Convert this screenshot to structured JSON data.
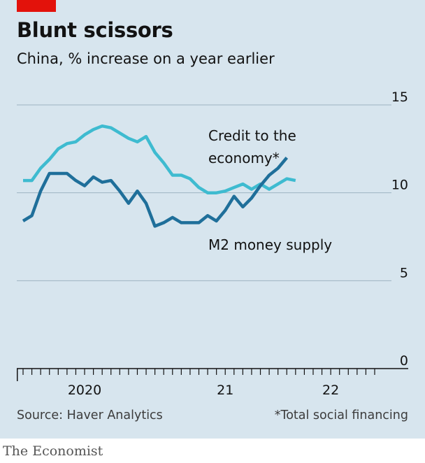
{
  "title": "Blunt scissors",
  "subtitle": "China, % increase on a year earlier",
  "source": "Source: Haver Analytics",
  "footnote": "*Total social financing",
  "brand": "The Economist",
  "colors": {
    "background": "#d7e5ee",
    "accent": "#e3120b",
    "credit": "#3ebbd0",
    "m2": "#1f6f9a",
    "grid": "#9db3c2",
    "axis": "#121212"
  },
  "chart_data": {
    "type": "line",
    "title": "Blunt scissors",
    "subtitle": "China, % increase on a year earlier",
    "xlabel": "",
    "ylabel": "",
    "ylim": [
      0,
      15
    ],
    "yticks": [
      0,
      5,
      10,
      15
    ],
    "ytick_labels": [
      "0",
      "5",
      "10",
      "15"
    ],
    "xlim": [
      0,
      41
    ],
    "month_ticks": 41,
    "year_ticks": [
      {
        "label": "2020",
        "index": 7
      },
      {
        "label": "21",
        "index": 23
      },
      {
        "label": "22",
        "index": 35
      }
    ],
    "x_start": "2019-08",
    "x_end": "2022-06",
    "series": [
      {
        "name": "Credit to the economy*",
        "label_lines": [
          "Credit to the",
          "economy*"
        ],
        "values": [
          10.7,
          10.7,
          11.4,
          11.9,
          12.5,
          12.8,
          12.9,
          13.3,
          13.6,
          13.8,
          13.7,
          13.4,
          13.1,
          12.9,
          13.2,
          12.3,
          11.7,
          11.0,
          11.0,
          10.8,
          10.3,
          10.0,
          10.0,
          10.1,
          10.3,
          10.5,
          10.2,
          10.5,
          10.2,
          10.5,
          10.8,
          10.7
        ]
      },
      {
        "name": "M2 money supply",
        "label_lines": [
          "M2 money supply"
        ],
        "values": [
          8.4,
          8.7,
          10.1,
          11.1,
          11.1,
          11.1,
          10.7,
          10.4,
          10.9,
          10.6,
          10.7,
          10.1,
          9.4,
          10.1,
          9.4,
          8.1,
          8.3,
          8.6,
          8.3,
          8.3,
          8.3,
          8.7,
          8.4,
          9.0,
          9.8,
          9.2,
          9.7,
          10.4,
          11.0,
          11.4,
          12.0
        ]
      }
    ]
  }
}
